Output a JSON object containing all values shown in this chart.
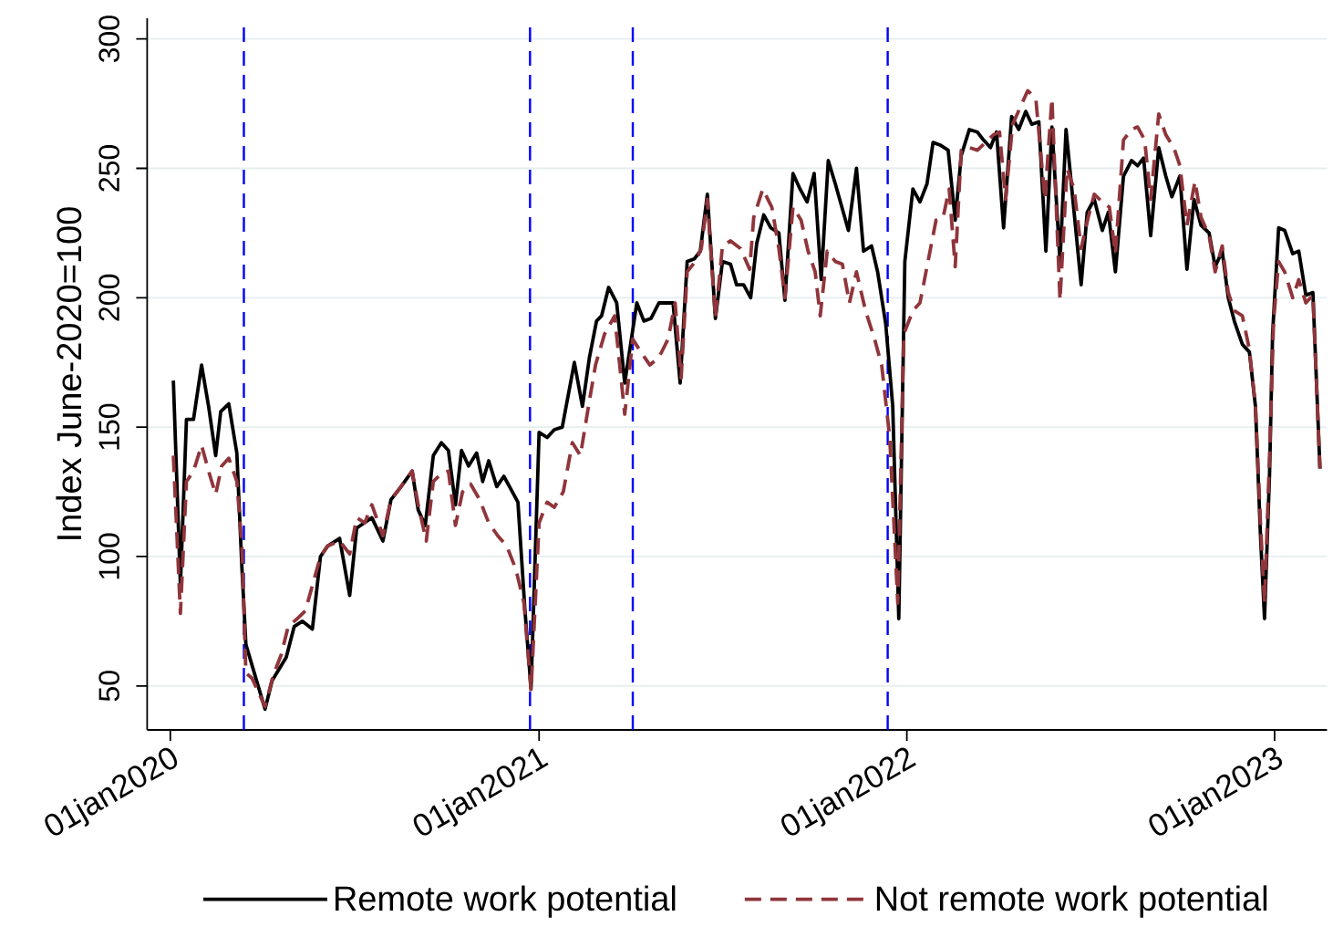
{
  "chart_data": {
    "type": "line",
    "ylabel": "Index June-2020=100",
    "series": [
      {
        "name": "Remote work potential",
        "color": "#000000",
        "line_style": "solid",
        "x": [
          "2020-01-04",
          "2020-01-11",
          "2020-01-17",
          "2020-01-24",
          "2020-02-01",
          "2020-02-08",
          "2020-02-15",
          "2020-02-20",
          "2020-02-28",
          "2020-03-07",
          "2020-03-12",
          "2020-03-16",
          "2020-04-04",
          "2020-04-11",
          "2020-04-25",
          "2020-05-03",
          "2020-05-11",
          "2020-05-21",
          "2020-05-29",
          "2020-06-05",
          "2020-06-17",
          "2020-06-27",
          "2020-07-04",
          "2020-07-19",
          "2020-07-30",
          "2020-08-07",
          "2020-08-17",
          "2020-08-28",
          "2020-09-03",
          "2020-09-10",
          "2020-09-18",
          "2020-09-26",
          "2020-10-03",
          "2020-10-10",
          "2020-10-16",
          "2020-10-23",
          "2020-10-31",
          "2020-11-06",
          "2020-11-12",
          "2020-11-20",
          "2020-11-27",
          "2020-12-04",
          "2020-12-11",
          "2020-12-18",
          "2020-12-24",
          "2021-01-01",
          "2021-01-09",
          "2021-01-16",
          "2021-01-24",
          "2021-02-05",
          "2021-02-13",
          "2021-02-20",
          "2021-02-27",
          "2021-03-04",
          "2021-03-11",
          "2021-03-19",
          "2021-03-27",
          "2021-04-08",
          "2021-04-15",
          "2021-04-22",
          "2021-04-30",
          "2021-05-14",
          "2021-05-21",
          "2021-05-28",
          "2021-06-04",
          "2021-06-10",
          "2021-06-17",
          "2021-06-25",
          "2021-07-02",
          "2021-07-10",
          "2021-07-16",
          "2021-07-23",
          "2021-07-30",
          "2021-08-05",
          "2021-08-12",
          "2021-08-19",
          "2021-08-27",
          "2021-09-02",
          "2021-09-10",
          "2021-09-17",
          "2021-09-24",
          "2021-10-01",
          "2021-10-08",
          "2021-10-15",
          "2021-10-22",
          "2021-11-04",
          "2021-11-12",
          "2021-11-19",
          "2021-11-27",
          "2021-12-03",
          "2021-12-11",
          "2021-12-18",
          "2021-12-24",
          "2021-12-30",
          "2022-01-07",
          "2022-01-14",
          "2022-01-21",
          "2022-01-27",
          "2022-02-03",
          "2022-02-11",
          "2022-02-18",
          "2022-02-24",
          "2022-03-04",
          "2022-03-12",
          "2022-03-18",
          "2022-03-25",
          "2022-03-31",
          "2022-04-07",
          "2022-04-15",
          "2022-04-22",
          "2022-04-29",
          "2022-05-05",
          "2022-05-12",
          "2022-05-19",
          "2022-05-25",
          "2022-06-02",
          "2022-06-08",
          "2022-06-16",
          "2022-06-23",
          "2022-06-29",
          "2022-07-06",
          "2022-07-14",
          "2022-07-20",
          "2022-07-27",
          "2022-08-04",
          "2022-08-12",
          "2022-08-18",
          "2022-08-24",
          "2022-08-31",
          "2022-09-08",
          "2022-09-15",
          "2022-09-21",
          "2022-09-29",
          "2022-10-06",
          "2022-10-13",
          "2022-10-20",
          "2022-10-28",
          "2022-11-03",
          "2022-11-10",
          "2022-11-16",
          "2022-11-22",
          "2022-11-30",
          "2022-12-07",
          "2022-12-13",
          "2022-12-18",
          "2022-12-22",
          "2022-12-27",
          "2022-12-30",
          "2023-01-05",
          "2023-01-11",
          "2023-01-19",
          "2023-01-25",
          "2023-02-01",
          "2023-02-08",
          "2023-02-15"
        ],
        "values": [
          168,
          89,
          153,
          153,
          174,
          158,
          139,
          156,
          159,
          140,
          96,
          66,
          41,
          52,
          61,
          73,
          75,
          72,
          100,
          104,
          107,
          85,
          111,
          115,
          106,
          122,
          127,
          133,
          118,
          112,
          139,
          144,
          141,
          120,
          141,
          135,
          140,
          129,
          137,
          127,
          131,
          126,
          121,
          79,
          49,
          148,
          146,
          149,
          150,
          175,
          158,
          177,
          191,
          193,
          204,
          198,
          167,
          198,
          191,
          192,
          198,
          198,
          167,
          214,
          215,
          218,
          240,
          192,
          214,
          213,
          205,
          205,
          200,
          221,
          232,
          227,
          225,
          199,
          248,
          242,
          237,
          248,
          207,
          253,
          244,
          226,
          250,
          218,
          220,
          210,
          190,
          158,
          76,
          214,
          242,
          237,
          244,
          260,
          259,
          257,
          230,
          255,
          265,
          264,
          261,
          258,
          264,
          227,
          270,
          265,
          272,
          267,
          268,
          218,
          266,
          214,
          265,
          233,
          205,
          233,
          238,
          226,
          233,
          210,
          247,
          253,
          251,
          254,
          224,
          258,
          247,
          239,
          247,
          211,
          238,
          228,
          225,
          212,
          218,
          200,
          191,
          182,
          179,
          158,
          108,
          76,
          132,
          186,
          227,
          226,
          217,
          218,
          201,
          202,
          134
        ]
      },
      {
        "name": "Not remote work potential",
        "color": "#90353b",
        "line_style": "dashed",
        "x": [
          "2020-01-04",
          "2020-01-11",
          "2020-01-17",
          "2020-01-24",
          "2020-02-01",
          "2020-02-08",
          "2020-02-15",
          "2020-02-21",
          "2020-02-28",
          "2020-03-07",
          "2020-03-12",
          "2020-03-16",
          "2020-03-22",
          "2020-04-04",
          "2020-04-12",
          "2020-04-20",
          "2020-04-27",
          "2020-05-06",
          "2020-05-14",
          "2020-05-29",
          "2020-06-05",
          "2020-06-17",
          "2020-06-27",
          "2020-07-04",
          "2020-07-12",
          "2020-07-19",
          "2020-07-30",
          "2020-08-07",
          "2020-08-17",
          "2020-08-28",
          "2020-09-03",
          "2020-09-11",
          "2020-09-18",
          "2020-09-26",
          "2020-10-03",
          "2020-10-10",
          "2020-10-17",
          "2020-10-25",
          "2020-11-03",
          "2020-11-12",
          "2020-11-21",
          "2020-11-30",
          "2020-12-09",
          "2020-12-17",
          "2020-12-24",
          "2021-01-01",
          "2021-01-09",
          "2021-01-16",
          "2021-01-25",
          "2021-02-03",
          "2021-02-11",
          "2021-02-19",
          "2021-02-26",
          "2021-03-07",
          "2021-03-17",
          "2021-03-27",
          "2021-04-04",
          "2021-04-12",
          "2021-04-21",
          "2021-04-30",
          "2021-05-09",
          "2021-05-16",
          "2021-05-22",
          "2021-05-28",
          "2021-06-05",
          "2021-06-11",
          "2021-06-17",
          "2021-06-25",
          "2021-07-02",
          "2021-07-10",
          "2021-07-20",
          "2021-07-29",
          "2021-08-02",
          "2021-08-11",
          "2021-08-20",
          "2021-08-27",
          "2021-09-02",
          "2021-09-10",
          "2021-09-18",
          "2021-09-25",
          "2021-10-02",
          "2021-10-07",
          "2021-10-14",
          "2021-10-22",
          "2021-10-29",
          "2021-11-05",
          "2021-11-12",
          "2021-11-21",
          "2021-11-30",
          "2021-12-07",
          "2021-12-15",
          "2021-12-23",
          "2021-12-29",
          "2022-01-07",
          "2022-01-14",
          "2022-01-22",
          "2022-01-30",
          "2022-02-06",
          "2022-02-12",
          "2022-02-18",
          "2022-02-24",
          "2022-03-04",
          "2022-03-12",
          "2022-03-20",
          "2022-03-28",
          "2022-04-03",
          "2022-04-09",
          "2022-04-16",
          "2022-04-24",
          "2022-05-01",
          "2022-05-09",
          "2022-05-18",
          "2022-05-25",
          "2022-06-02",
          "2022-06-09",
          "2022-06-16",
          "2022-06-23",
          "2022-06-30",
          "2022-07-06",
          "2022-07-14",
          "2022-07-21",
          "2022-07-27",
          "2022-08-04",
          "2022-08-12",
          "2022-08-18",
          "2022-08-25",
          "2022-08-31",
          "2022-09-08",
          "2022-09-15",
          "2022-09-23",
          "2022-09-29",
          "2022-10-06",
          "2022-10-14",
          "2022-10-20",
          "2022-10-28",
          "2022-11-03",
          "2022-11-10",
          "2022-11-16",
          "2022-11-22",
          "2022-11-30",
          "2022-12-07",
          "2022-12-13",
          "2022-12-18",
          "2022-12-22",
          "2022-12-27",
          "2022-12-31",
          "2023-01-05",
          "2023-01-11",
          "2023-01-19",
          "2023-01-25",
          "2023-02-01",
          "2023-02-08",
          "2023-02-15"
        ],
        "values": [
          139,
          78,
          129,
          133,
          143,
          133,
          124,
          135,
          138,
          129,
          104,
          55,
          53,
          42,
          54,
          62,
          73,
          76,
          79,
          100,
          104,
          106,
          101,
          115,
          113,
          120,
          108,
          122,
          127,
          133,
          120,
          106,
          129,
          132,
          133,
          112,
          125,
          128,
          122,
          113,
          108,
          104,
          95,
          82,
          48,
          113,
          121,
          119,
          125,
          144,
          139,
          158,
          174,
          186,
          193,
          155,
          184,
          179,
          174,
          177,
          184,
          198,
          169,
          210,
          214,
          219,
          238,
          192,
          220,
          222,
          219,
          211,
          231,
          242,
          235,
          219,
          200,
          235,
          230,
          218,
          210,
          193,
          218,
          214,
          213,
          198,
          210,
          195,
          184,
          174,
          146,
          82,
          186,
          195,
          198,
          214,
          230,
          231,
          242,
          212,
          257,
          258,
          257,
          260,
          263,
          264,
          238,
          267,
          274,
          280,
          277,
          238,
          277,
          199,
          250,
          242,
          219,
          231,
          240,
          237,
          235,
          217,
          261,
          265,
          266,
          261,
          238,
          271,
          263,
          258,
          251,
          228,
          245,
          231,
          224,
          210,
          220,
          202,
          195,
          193,
          180,
          158,
          113,
          82,
          139,
          191,
          214,
          210,
          200,
          207,
          198,
          201,
          134
        ]
      }
    ],
    "xlim": [
      "2019-12-09",
      "2023-02-22"
    ],
    "ylim": [
      33,
      308
    ],
    "xticks": [
      {
        "value": "2020-01-01",
        "label": "01jan2020"
      },
      {
        "value": "2021-01-01",
        "label": "01jan2021"
      },
      {
        "value": "2022-01-01",
        "label": "01jan2022"
      },
      {
        "value": "2023-01-01",
        "label": "01jan2023"
      }
    ],
    "yticks": [
      50,
      100,
      150,
      200,
      250,
      300
    ],
    "grid": "y",
    "legend": "bottom",
    "ref_lines": [
      {
        "axis": "x",
        "value": "2020-03-14",
        "color": "#0000ff",
        "line_style": "dashed"
      },
      {
        "axis": "x",
        "value": "2020-12-23",
        "color": "#0000ff",
        "line_style": "dashed"
      },
      {
        "axis": "x",
        "value": "2021-04-04",
        "color": "#0000ff",
        "line_style": "dashed"
      },
      {
        "axis": "x",
        "value": "2021-12-13",
        "color": "#0000ff",
        "line_style": "dashed"
      }
    ]
  }
}
